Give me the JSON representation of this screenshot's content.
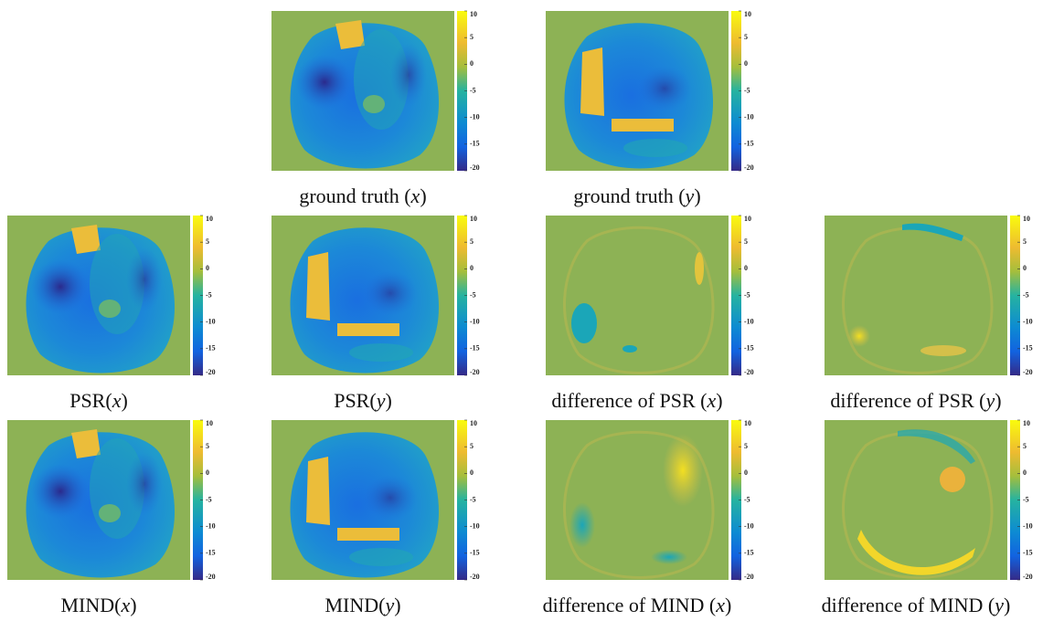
{
  "panels": [
    {
      "caption": {
        "text": "ground truth (",
        "var": "x",
        "close": ")"
      }
    },
    {
      "caption": {
        "text": "ground truth (",
        "var": "y",
        "close": ")"
      }
    },
    {
      "caption": {
        "text": "PSR(",
        "var": "x",
        "close": ")"
      }
    },
    {
      "caption": {
        "text": "PSR(",
        "var": "y",
        "close": ")"
      }
    },
    {
      "caption": {
        "text": "difference of PSR (",
        "var": "x",
        "close": ")"
      }
    },
    {
      "caption": {
        "text": "difference of PSR (",
        "var": "y",
        "close": ")"
      }
    },
    {
      "caption": {
        "text": "MIND(",
        "var": "x",
        "close": ")"
      }
    },
    {
      "caption": {
        "text": "MIND(",
        "var": "y",
        "close": ")"
      }
    },
    {
      "caption": {
        "text": "difference of MIND (",
        "var": "x",
        "close": ")"
      }
    },
    {
      "caption": {
        "text": "difference of MIND (",
        "var": "y",
        "close": ")"
      }
    }
  ],
  "colorbar_ticks": [
    "10",
    "5",
    "0",
    "-5",
    "-10",
    "-15",
    "-20"
  ]
}
